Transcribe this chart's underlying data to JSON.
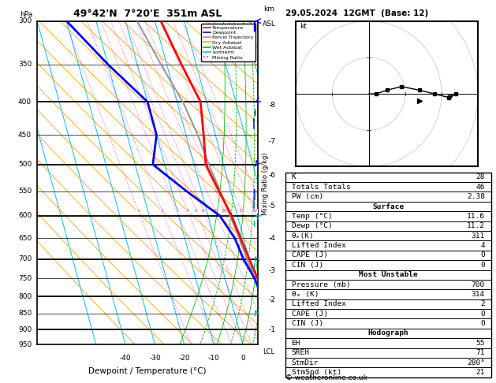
{
  "title_sounding": "49°42'N  7°20'E  351m ASL",
  "title_right": "29.05.2024  12GMT  (Base: 12)",
  "xlabel": "Dewpoint / Temperature (°C)",
  "ylabel_left": "hPa",
  "ylabel_right": "Mixing Ratio (g/kg)",
  "pressure_levels": [
    300,
    350,
    400,
    450,
    500,
    550,
    600,
    650,
    700,
    750,
    800,
    850,
    900,
    950
  ],
  "pressure_major": [
    300,
    400,
    500,
    600,
    700,
    800,
    900
  ],
  "p_min": 300,
  "p_max": 950,
  "temp_min": -40,
  "temp_max": 35,
  "skew_factor": 30,
  "isotherm_color": "#00bfff",
  "dry_adiabat_color": "#ffa500",
  "wet_adiabat_color": "#00bb00",
  "mixing_ratio_color": "#ff1493",
  "temperature_color": "#ff0000",
  "dewpoint_color": "#0000ff",
  "parcel_color": "#999999",
  "background_color": "#ffffff",
  "legend_entries": [
    "Temperature",
    "Dewpoint",
    "Parcel Trajectory",
    "Dry Adiabat",
    "Wet Adiabat",
    "Isotherm",
    "Mixing Ratio"
  ],
  "legend_colors": [
    "#ff0000",
    "#0000ff",
    "#999999",
    "#ffa500",
    "#00bb00",
    "#00bfff",
    "#ff1493"
  ],
  "legend_styles": [
    "solid",
    "solid",
    "solid",
    "solid",
    "solid",
    "solid",
    "dotted"
  ],
  "temp_profile_p": [
    950,
    900,
    850,
    800,
    750,
    700,
    650,
    600,
    550,
    500,
    450,
    400,
    350,
    300
  ],
  "temp_profile_t": [
    11.6,
    11.6,
    11.8,
    11.5,
    11.0,
    10.0,
    9.0,
    8.0,
    6.0,
    4.0,
    6.0,
    8.0,
    5.0,
    2.0
  ],
  "dewp_profile_p": [
    950,
    900,
    850,
    800,
    750,
    700,
    650,
    600,
    550,
    500,
    450,
    400,
    350,
    300
  ],
  "dewp_profile_t": [
    11.2,
    11.2,
    11.3,
    11.0,
    10.0,
    8.0,
    7.0,
    4.0,
    -5.0,
    -14.0,
    -10.0,
    -10.0,
    -20.0,
    -30.0
  ],
  "parcel_profile_p": [
    950,
    900,
    850,
    800,
    750,
    700,
    650,
    600,
    550,
    500,
    450,
    400,
    350,
    300
  ],
  "parcel_profile_t": [
    11.8,
    12.0,
    11.5,
    10.8,
    10.0,
    9.2,
    8.5,
    7.5,
    6.5,
    5.0,
    4.0,
    2.0,
    -2.0,
    -6.0
  ],
  "mixing_ratio_vals": [
    1,
    2,
    3,
    4,
    5,
    6,
    8,
    10,
    15,
    20,
    25
  ],
  "km_ticks": [
    1,
    2,
    3,
    4,
    5,
    6,
    7,
    8
  ],
  "km_pressures": [
    900,
    810,
    730,
    650,
    580,
    520,
    460,
    405
  ],
  "lcl_pressure": 950,
  "hodograph_u": [
    0,
    2,
    5,
    9,
    14,
    18,
    22,
    24
  ],
  "hodograph_v": [
    0,
    0,
    1,
    2,
    1,
    0,
    -1,
    0
  ],
  "storm_motion_u": 14,
  "storm_motion_v": -2,
  "stats_K": "28",
  "stats_TT": "46",
  "stats_PW": "2.38",
  "surf_temp": "11.6",
  "surf_dewp": "11.2",
  "surf_thetae": "311",
  "surf_li": "4",
  "surf_cape": "0",
  "surf_cin": "0",
  "mu_pres": "700",
  "mu_thetae": "314",
  "mu_li": "2",
  "mu_cape": "0",
  "mu_cin": "0",
  "hodo_eh": "55",
  "hodo_sreh": "71",
  "hodo_stmdir": "280°",
  "hodo_stmspd": "21",
  "copyright": "© weatheronline.co.uk",
  "wind_barb_pressures": [
    300,
    400,
    500,
    600,
    700,
    850
  ],
  "wind_barb_colors_blue": [
    300,
    400,
    500
  ],
  "wind_barb_colors_cyan": [
    600,
    700,
    850
  ],
  "wind_barb_speeds": [
    20,
    18,
    20,
    12,
    8,
    5
  ],
  "wind_barb_dirs": [
    270,
    275,
    280,
    265,
    255,
    250
  ]
}
